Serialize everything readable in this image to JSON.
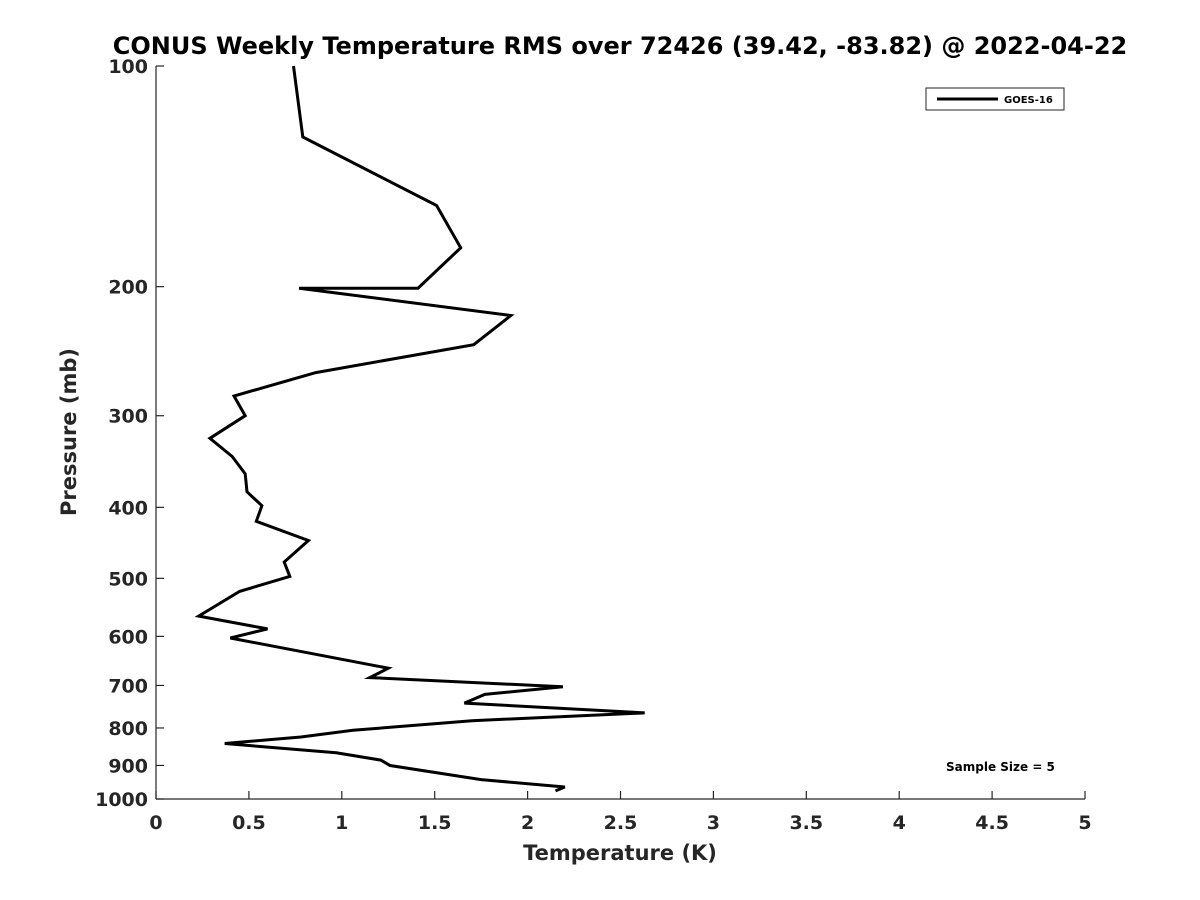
{
  "chart_data": {
    "type": "line",
    "title": "CONUS Weekly Temperature RMS over 72426 (39.42, -83.82) @ 2022-04-22",
    "xlabel": "Temperature (K)",
    "ylabel": "Pressure (mb)",
    "xlim": [
      0,
      5
    ],
    "ylim": [
      100,
      1000
    ],
    "y_scale": "log",
    "y_reversed": true,
    "x_ticks": [
      0,
      0.5,
      1,
      1.5,
      2,
      2.5,
      3,
      3.5,
      4,
      4.5,
      5
    ],
    "x_tick_labels": [
      "0",
      "0.5",
      "1",
      "1.5",
      "2",
      "2.5",
      "3",
      "3.5",
      "4",
      "4.5",
      "5"
    ],
    "y_ticks": [
      100,
      200,
      300,
      400,
      500,
      600,
      700,
      800,
      900,
      1000
    ],
    "y_tick_labels": [
      "100",
      "200",
      "300",
      "400",
      "500",
      "600",
      "700",
      "800",
      "900",
      "1000"
    ],
    "grid": false,
    "legend_position": "top-right",
    "annotation": "Sample Size = 5",
    "series": [
      {
        "name": "GOES-16",
        "color": "#000000",
        "points": [
          [
            0.74,
            100
          ],
          [
            0.79,
            125
          ],
          [
            1.51,
            155
          ],
          [
            1.64,
            177
          ],
          [
            1.41,
            201
          ],
          [
            0.77,
            201
          ],
          [
            1.91,
            219
          ],
          [
            1.71,
            240
          ],
          [
            0.86,
            262
          ],
          [
            0.42,
            282
          ],
          [
            0.48,
            300
          ],
          [
            0.29,
            322
          ],
          [
            0.41,
            341
          ],
          [
            0.48,
            360
          ],
          [
            0.49,
            381
          ],
          [
            0.57,
            398
          ],
          [
            0.54,
            418
          ],
          [
            0.82,
            444
          ],
          [
            0.69,
            475
          ],
          [
            0.72,
            497
          ],
          [
            0.45,
            521
          ],
          [
            0.23,
            563
          ],
          [
            0.6,
            586
          ],
          [
            0.4,
            603
          ],
          [
            1.25,
            663
          ],
          [
            1.15,
            683
          ],
          [
            2.19,
            703
          ],
          [
            1.77,
            720
          ],
          [
            1.66,
            740
          ],
          [
            2.63,
            763
          ],
          [
            1.7,
            782
          ],
          [
            1.06,
            806
          ],
          [
            0.78,
            823
          ],
          [
            0.37,
            840
          ],
          [
            0.97,
            865
          ],
          [
            1.21,
            885
          ],
          [
            1.26,
            900
          ],
          [
            1.75,
            941
          ],
          [
            2.2,
            963
          ],
          [
            2.15,
            975
          ]
        ]
      }
    ]
  }
}
